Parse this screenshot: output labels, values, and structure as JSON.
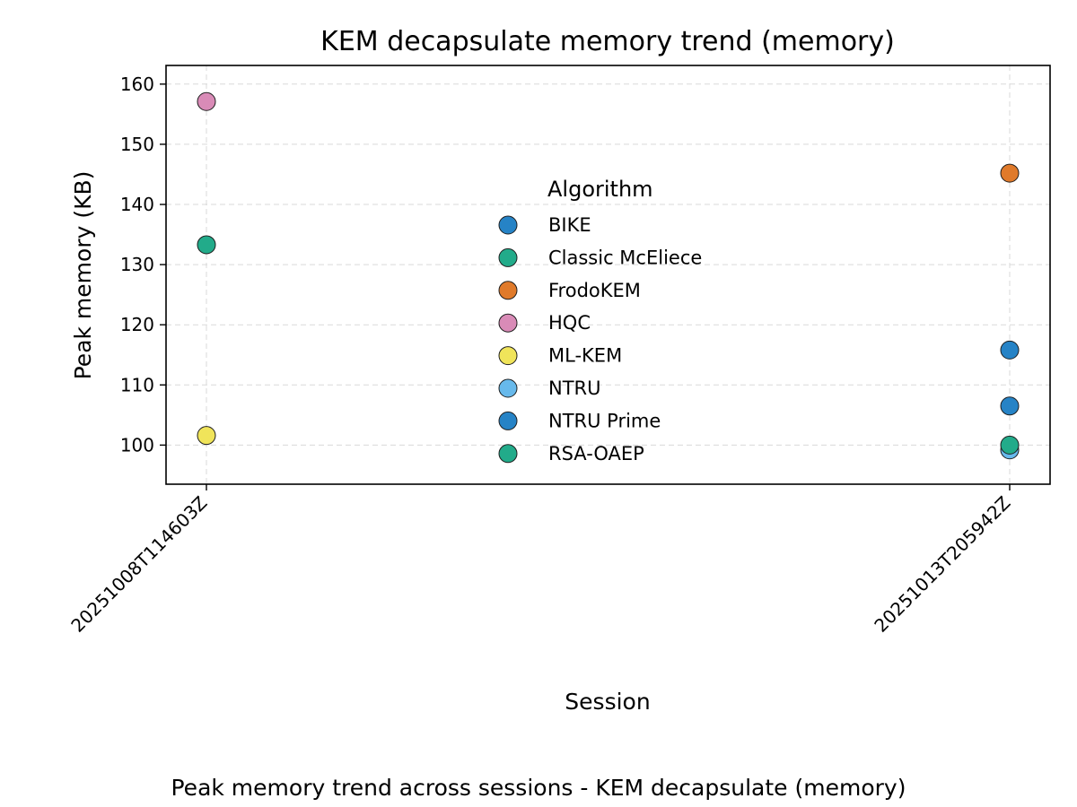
{
  "chart_data": {
    "type": "scatter",
    "title": "KEM decapsulate memory trend (memory)",
    "xlabel": "Session",
    "ylabel": "Peak memory (KB)",
    "categories": [
      "20251008T114603Z",
      "20251013T205942Z"
    ],
    "ylim": [
      93.5,
      163.1
    ],
    "yticks": [
      100,
      110,
      120,
      130,
      140,
      150,
      160
    ],
    "grid": true,
    "legend": {
      "title": "Algorithm",
      "position": "center"
    },
    "series": [
      {
        "name": "BIKE",
        "color": "#2683c6",
        "values": [
          null,
          115.8
        ]
      },
      {
        "name": "Classic McEliece",
        "color": "#22ab8a",
        "values": [
          133.3,
          null
        ]
      },
      {
        "name": "FrodoKEM",
        "color": "#e07a2a",
        "values": [
          null,
          145.2
        ]
      },
      {
        "name": "HQC",
        "color": "#d98bb7",
        "values": [
          157.1,
          null
        ]
      },
      {
        "name": "ML-KEM",
        "color": "#f0e45a",
        "values": [
          101.6,
          null
        ]
      },
      {
        "name": "NTRU",
        "color": "#67b9eb",
        "values": [
          null,
          99.2
        ]
      },
      {
        "name": "NTRU Prime",
        "color": "#2683c6",
        "values": [
          null,
          106.5
        ]
      },
      {
        "name": "RSA-OAEP",
        "color": "#22ab8a",
        "values": [
          null,
          100.0
        ]
      }
    ]
  },
  "caption": "Peak memory trend across sessions - KEM decapsulate (memory)"
}
